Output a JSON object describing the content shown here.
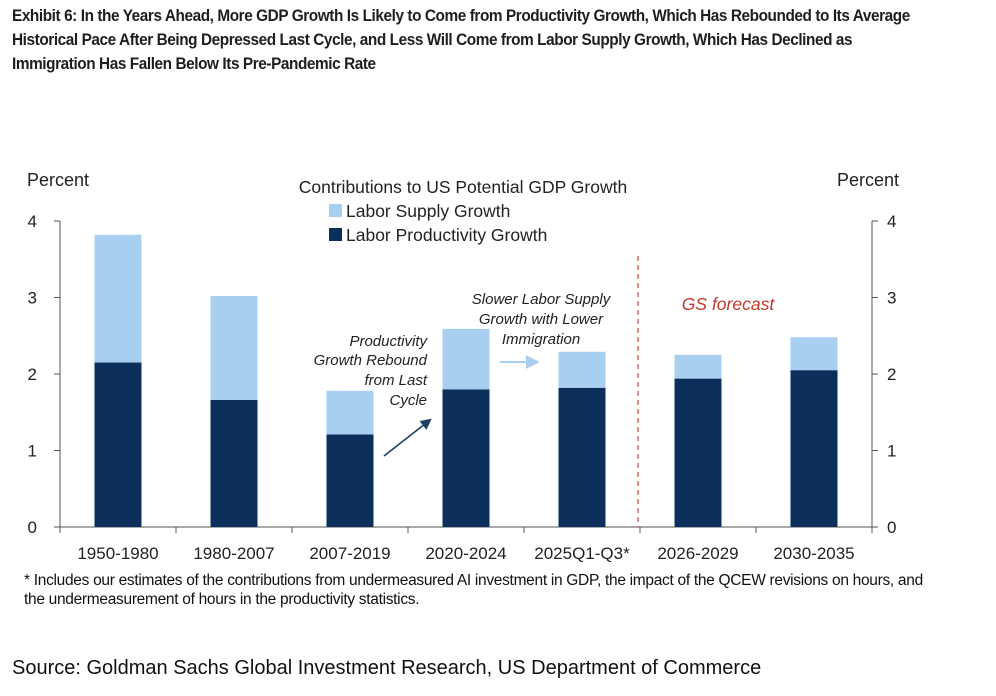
{
  "exhibit_title": "Exhibit 6: In the Years Ahead, More GDP Growth Is Likely to Come from Productivity Growth, Which Has Rebounded to Its Average Historical Pace After Being Depressed Last Cycle, and Less Will Come from Labor Supply Growth, Which Has Declined as Immigration Has Fallen Below Its Pre-Pandemic Rate",
  "chart_data": {
    "type": "bar",
    "stacked": true,
    "title": "Contributions to US Potential GDP Growth",
    "ylabel_left": "Percent",
    "ylabel_right": "Percent",
    "ylim": [
      0,
      4
    ],
    "yticks": [
      0,
      1,
      2,
      3,
      4
    ],
    "categories": [
      "1950-1980",
      "1980-2007",
      "2007-2019",
      "2020-2024",
      "2025Q1-Q3*",
      "2026-2029",
      "2030-2035"
    ],
    "series": [
      {
        "name": "Labor Productivity Growth",
        "color": "#0b2f5a",
        "values": [
          2.15,
          1.66,
          1.21,
          1.8,
          1.82,
          1.94,
          2.05
        ]
      },
      {
        "name": "Labor Supply Growth",
        "color": "#a8cff0",
        "values": [
          1.67,
          1.36,
          0.57,
          0.79,
          0.47,
          0.31,
          0.43
        ]
      }
    ],
    "legend": [
      "Labor Supply Growth",
      "Labor Productivity Growth"
    ],
    "legend_position": "top-left",
    "annotations": [
      {
        "id": "productivity",
        "lines": [
          "Productivity",
          "Growth Rebound",
          "from Last",
          "Cycle"
        ]
      },
      {
        "id": "labor",
        "lines": [
          "Slower Labor Supply",
          "Growth with Lower",
          "Immigration"
        ]
      },
      {
        "id": "forecast",
        "lines": [
          "GS forecast"
        ],
        "color": "#c0392b"
      }
    ],
    "forecast_start_after": "2025Q1-Q3*"
  },
  "footnote": "* Includes our estimates of the contributions from undermeasured AI investment in GDP, the impact of the QCEW revisions on hours, and the undermeasurement of hours in the productivity statistics.",
  "source": "Source: Goldman Sachs Global Investment Research, US Department of Commerce"
}
